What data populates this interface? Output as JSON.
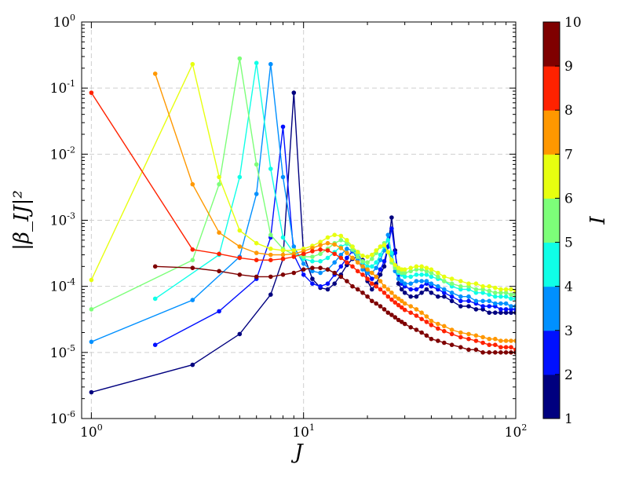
{
  "chart_data": {
    "type": "line",
    "xlabel": "J",
    "ylabel": "|β_IJ|²",
    "x_scale": "log",
    "y_scale": "log",
    "xlim": [
      0.9,
      100
    ],
    "ylim": [
      1e-06,
      1
    ],
    "x_ticks": [
      {
        "value": 1,
        "base": "10",
        "exp": "0"
      },
      {
        "value": 10,
        "base": "10",
        "exp": "1"
      },
      {
        "value": 100,
        "base": "10",
        "exp": "2"
      }
    ],
    "y_ticks": [
      {
        "value": 1,
        "base": "10",
        "exp": "0"
      },
      {
        "value": 0.1,
        "base": "10",
        "exp": "-1"
      },
      {
        "value": 0.01,
        "base": "10",
        "exp": "-2"
      },
      {
        "value": 0.001,
        "base": "10",
        "exp": "-3"
      },
      {
        "value": 0.0001,
        "base": "10",
        "exp": "-4"
      },
      {
        "value": 1e-05,
        "base": "10",
        "exp": "-5"
      },
      {
        "value": 1e-06,
        "base": "10",
        "exp": "-6"
      }
    ],
    "grid": true,
    "colormap": "jet",
    "colorbar": {
      "label": "I",
      "min": 1,
      "max": 10,
      "ticks": [
        "1",
        "2",
        "3",
        "4",
        "5",
        "6",
        "7",
        "8",
        "9",
        "10"
      ],
      "colors": [
        "#00007f",
        "#0010ff",
        "#0090ff",
        "#0fffe7",
        "#7dff79",
        "#e7ff0f",
        "#ff9800",
        "#ff2200",
        "#7f0000"
      ]
    },
    "series": [
      {
        "I": 1,
        "color": "#00007f",
        "x": [
          1,
          3,
          5,
          7,
          8,
          9,
          10,
          11,
          12,
          13,
          14,
          15,
          16,
          17,
          18,
          19,
          20,
          21,
          22,
          23,
          24,
          25,
          26,
          27,
          28,
          29,
          30,
          32,
          34,
          36,
          38,
          40,
          43,
          46,
          50,
          55,
          60,
          65,
          70,
          75,
          80,
          85,
          90,
          95,
          100
        ],
        "y": [
          2.5e-06,
          6.5e-06,
          1.9e-05,
          7.5e-05,
          0.00026,
          0.085,
          0.0003,
          0.00013,
          9.5e-05,
          9e-05,
          0.00011,
          0.00015,
          0.00021,
          0.00026,
          0.00028,
          0.00025,
          0.00012,
          9e-05,
          0.00011,
          0.00015,
          0.0002,
          0.0004,
          0.0011,
          0.00035,
          0.00011,
          9e-05,
          8e-05,
          7e-05,
          7e-05,
          8e-05,
          9e-05,
          8e-05,
          7e-05,
          7e-05,
          6e-05,
          5e-05,
          5e-05,
          4.5e-05,
          4.5e-05,
          4e-05,
          4e-05,
          4e-05,
          4e-05,
          4e-05,
          4e-05
        ]
      },
      {
        "I": 2,
        "color": "#0010ff",
        "x": [
          2,
          4,
          6,
          7,
          8,
          9,
          10,
          11,
          12,
          13,
          14,
          15,
          16,
          17,
          18,
          19,
          20,
          21,
          22,
          23,
          24,
          25,
          26,
          27,
          28,
          29,
          30,
          32,
          34,
          36,
          38,
          40,
          43,
          46,
          50,
          55,
          60,
          65,
          70,
          75,
          80,
          85,
          90,
          95,
          100
        ],
        "y": [
          1.3e-05,
          4.2e-05,
          0.00013,
          0.00055,
          0.026,
          0.0003,
          0.00015,
          0.00011,
          0.0001,
          0.00011,
          0.00015,
          0.0002,
          0.00027,
          0.00034,
          0.00033,
          0.00022,
          0.00016,
          0.00013,
          0.00014,
          0.00018,
          0.00024,
          0.0004,
          0.00075,
          0.00032,
          0.00015,
          0.00011,
          0.0001,
          9e-05,
          9e-05,
          0.0001,
          0.00011,
          0.0001,
          9e-05,
          8e-05,
          7e-05,
          6e-05,
          6e-05,
          5.5e-05,
          5e-05,
          5e-05,
          5e-05,
          4.5e-05,
          4.5e-05,
          4.5e-05,
          4.5e-05
        ]
      },
      {
        "I": 3,
        "color": "#0090ff",
        "x": [
          1,
          3,
          5,
          6,
          7,
          8,
          9,
          10,
          11,
          12,
          13,
          14,
          15,
          16,
          17,
          18,
          19,
          20,
          21,
          22,
          23,
          24,
          25,
          26,
          27,
          28,
          29,
          30,
          32,
          34,
          36,
          38,
          40,
          43,
          46,
          50,
          55,
          60,
          65,
          70,
          75,
          80,
          85,
          90,
          95,
          100
        ],
        "y": [
          1.45e-05,
          6.2e-05,
          0.00028,
          0.0025,
          0.23,
          0.0045,
          0.0004,
          0.00022,
          0.00017,
          0.00016,
          0.00018,
          0.00023,
          0.0003,
          0.00037,
          0.00035,
          0.00025,
          0.00018,
          0.00016,
          0.00016,
          0.00019,
          0.00025,
          0.00035,
          0.0006,
          0.0003,
          0.00017,
          0.00013,
          0.00012,
          0.00011,
          0.00011,
          0.00012,
          0.00012,
          0.00012,
          0.00011,
          0.0001,
          9e-05,
          8e-05,
          7e-05,
          7e-05,
          6e-05,
          6e-05,
          6e-05,
          5.5e-05,
          5.5e-05,
          5.5e-05,
          5e-05,
          5e-05
        ]
      },
      {
        "I": 4,
        "color": "#0fffe7",
        "x": [
          2,
          4,
          5,
          6,
          7,
          8,
          9,
          10,
          11,
          12,
          13,
          14,
          15,
          16,
          17,
          18,
          19,
          20,
          21,
          22,
          23,
          24,
          25,
          26,
          27,
          28,
          29,
          30,
          32,
          34,
          36,
          38,
          40,
          43,
          46,
          50,
          55,
          60,
          65,
          70,
          75,
          80,
          85,
          90,
          95,
          100
        ],
        "y": [
          6.5e-05,
          0.0003,
          0.0045,
          0.24,
          0.006,
          0.00055,
          0.00032,
          0.00026,
          0.00024,
          0.00024,
          0.00027,
          0.00033,
          0.0004,
          0.00044,
          0.0004,
          0.0003,
          0.00023,
          0.0002,
          0.0002,
          0.00023,
          0.0003,
          0.0004,
          0.0005,
          0.00032,
          0.0002,
          0.00016,
          0.00015,
          0.00014,
          0.00014,
          0.00015,
          0.00015,
          0.00015,
          0.00014,
          0.00013,
          0.00012,
          0.0001,
          9e-05,
          9e-05,
          8e-05,
          8e-05,
          7.5e-05,
          7e-05,
          7e-05,
          7e-05,
          6.5e-05,
          6.5e-05
        ]
      },
      {
        "I": 5,
        "color": "#7dff79",
        "x": [
          1,
          3,
          4,
          5,
          6,
          7,
          8,
          9,
          10,
          11,
          12,
          13,
          14,
          15,
          16,
          17,
          18,
          19,
          20,
          21,
          22,
          23,
          24,
          25,
          26,
          27,
          28,
          29,
          30,
          32,
          34,
          36,
          38,
          40,
          43,
          46,
          50,
          55,
          60,
          65,
          70,
          75,
          80,
          85,
          90,
          95,
          100
        ],
        "y": [
          4.5e-05,
          0.00025,
          0.0035,
          0.28,
          0.007,
          0.0006,
          0.00037,
          0.0003,
          0.00028,
          0.00028,
          0.00031,
          0.00037,
          0.00045,
          0.0005,
          0.00046,
          0.00036,
          0.00028,
          0.00024,
          0.00023,
          0.00026,
          0.00032,
          0.0004,
          0.00045,
          0.00033,
          0.00023,
          0.00019,
          0.00017,
          0.00016,
          0.00016,
          0.00017,
          0.00018,
          0.00018,
          0.00017,
          0.00016,
          0.00014,
          0.00012,
          0.00011,
          0.0001,
          0.0001,
          9e-05,
          9e-05,
          8.5e-05,
          8e-05,
          8e-05,
          8e-05,
          7.5e-05,
          7.5e-05
        ]
      },
      {
        "I": 6,
        "color": "#e7ff0f",
        "x": [
          1,
          3,
          4,
          5,
          6,
          7,
          8,
          9,
          10,
          11,
          12,
          13,
          14,
          15,
          16,
          17,
          18,
          19,
          20,
          21,
          22,
          23,
          24,
          25,
          26,
          27,
          28,
          29,
          30,
          32,
          34,
          36,
          38,
          40,
          43,
          46,
          50,
          55,
          60,
          65,
          70,
          75,
          80,
          85,
          90,
          95,
          100
        ],
        "y": [
          0.000125,
          0.23,
          0.0045,
          0.0007,
          0.00045,
          0.00037,
          0.00035,
          0.00035,
          0.00037,
          0.00041,
          0.00047,
          0.00055,
          0.0006,
          0.00058,
          0.0005,
          0.0004,
          0.00033,
          0.00029,
          0.00028,
          0.0003,
          0.00035,
          0.0004,
          0.00042,
          0.00033,
          0.00025,
          0.00021,
          0.00019,
          0.00018,
          0.00018,
          0.00019,
          0.0002,
          0.0002,
          0.00019,
          0.00018,
          0.00016,
          0.00014,
          0.00013,
          0.00012,
          0.00011,
          0.00011,
          0.0001,
          0.0001,
          9.5e-05,
          9e-05,
          9e-05,
          9e-05,
          8.5e-05
        ]
      },
      {
        "I": 7,
        "color": "#ff9800",
        "x": [
          2,
          3,
          4,
          5,
          6,
          7,
          8,
          9,
          10,
          11,
          12,
          13,
          14,
          15,
          16,
          17,
          18,
          19,
          20,
          21,
          22,
          23,
          24,
          25,
          26,
          27,
          28,
          29,
          30,
          32,
          34,
          36,
          38,
          40,
          43,
          46,
          50,
          55,
          60,
          65,
          70,
          75,
          80,
          85,
          90,
          95,
          100
        ],
        "y": [
          0.165,
          0.0035,
          0.00065,
          0.0004,
          0.00032,
          0.0003,
          0.0003,
          0.00031,
          0.00034,
          0.00038,
          0.00042,
          0.00045,
          0.00043,
          0.00038,
          0.00032,
          0.00027,
          0.00023,
          0.0002,
          0.00018,
          0.00016,
          0.00014,
          0.00012,
          0.0001,
          9e-05,
          8e-05,
          7e-05,
          6.5e-05,
          6e-05,
          5.5e-05,
          5e-05,
          4.5e-05,
          4e-05,
          3.5e-05,
          3e-05,
          2.7e-05,
          2.5e-05,
          2.2e-05,
          2e-05,
          1.9e-05,
          1.8e-05,
          1.7e-05,
          1.6e-05,
          1.6e-05,
          1.5e-05,
          1.5e-05,
          1.5e-05,
          1.5e-05
        ]
      },
      {
        "I": 8,
        "color": "#ff2200",
        "x": [
          1,
          3,
          4,
          5,
          6,
          7,
          8,
          9,
          10,
          11,
          12,
          13,
          14,
          15,
          16,
          17,
          18,
          19,
          20,
          21,
          22,
          23,
          24,
          25,
          26,
          27,
          28,
          29,
          30,
          32,
          34,
          36,
          38,
          40,
          43,
          46,
          50,
          55,
          60,
          65,
          70,
          75,
          80,
          85,
          90,
          95,
          100
        ],
        "y": [
          0.085,
          0.00036,
          0.00031,
          0.00027,
          0.00025,
          0.00025,
          0.00026,
          0.00028,
          0.00031,
          0.00034,
          0.00036,
          0.00035,
          0.00031,
          0.00027,
          0.00023,
          0.0002,
          0.00017,
          0.00015,
          0.00013,
          0.00011,
          0.0001,
          9e-05,
          8e-05,
          7e-05,
          6.3e-05,
          5.7e-05,
          5.2e-05,
          4.8e-05,
          4.4e-05,
          4e-05,
          3.6e-05,
          3.2e-05,
          2.9e-05,
          2.6e-05,
          2.3e-05,
          2.1e-05,
          1.9e-05,
          1.7e-05,
          1.6e-05,
          1.5e-05,
          1.4e-05,
          1.3e-05,
          1.3e-05,
          1.2e-05,
          1.2e-05,
          1.2e-05,
          1.1e-05
        ]
      },
      {
        "I": 9,
        "color": "#7f0000",
        "x": [
          2,
          3,
          4,
          5,
          6,
          7,
          8,
          9,
          10,
          11,
          12,
          13,
          14,
          15,
          16,
          17,
          18,
          19,
          20,
          21,
          22,
          23,
          24,
          25,
          26,
          27,
          28,
          29,
          30,
          32,
          34,
          36,
          38,
          40,
          43,
          46,
          50,
          55,
          60,
          65,
          70,
          75,
          80,
          85,
          90,
          95,
          100
        ],
        "y": [
          0.0002,
          0.00019,
          0.00017,
          0.00015,
          0.00014,
          0.00014,
          0.00015,
          0.00016,
          0.00018,
          0.00019,
          0.00019,
          0.00018,
          0.00016,
          0.00014,
          0.00012,
          0.0001,
          9e-05,
          8e-05,
          7e-05,
          6e-05,
          5.5e-05,
          5e-05,
          4.5e-05,
          4e-05,
          3.7e-05,
          3.4e-05,
          3.1e-05,
          2.9e-05,
          2.7e-05,
          2.4e-05,
          2.2e-05,
          2e-05,
          1.8e-05,
          1.6e-05,
          1.5e-05,
          1.4e-05,
          1.3e-05,
          1.2e-05,
          1.1e-05,
          1.1e-05,
          1e-05,
          1e-05,
          1e-05,
          1e-05,
          1e-05,
          1e-05,
          1e-05
        ]
      }
    ]
  }
}
